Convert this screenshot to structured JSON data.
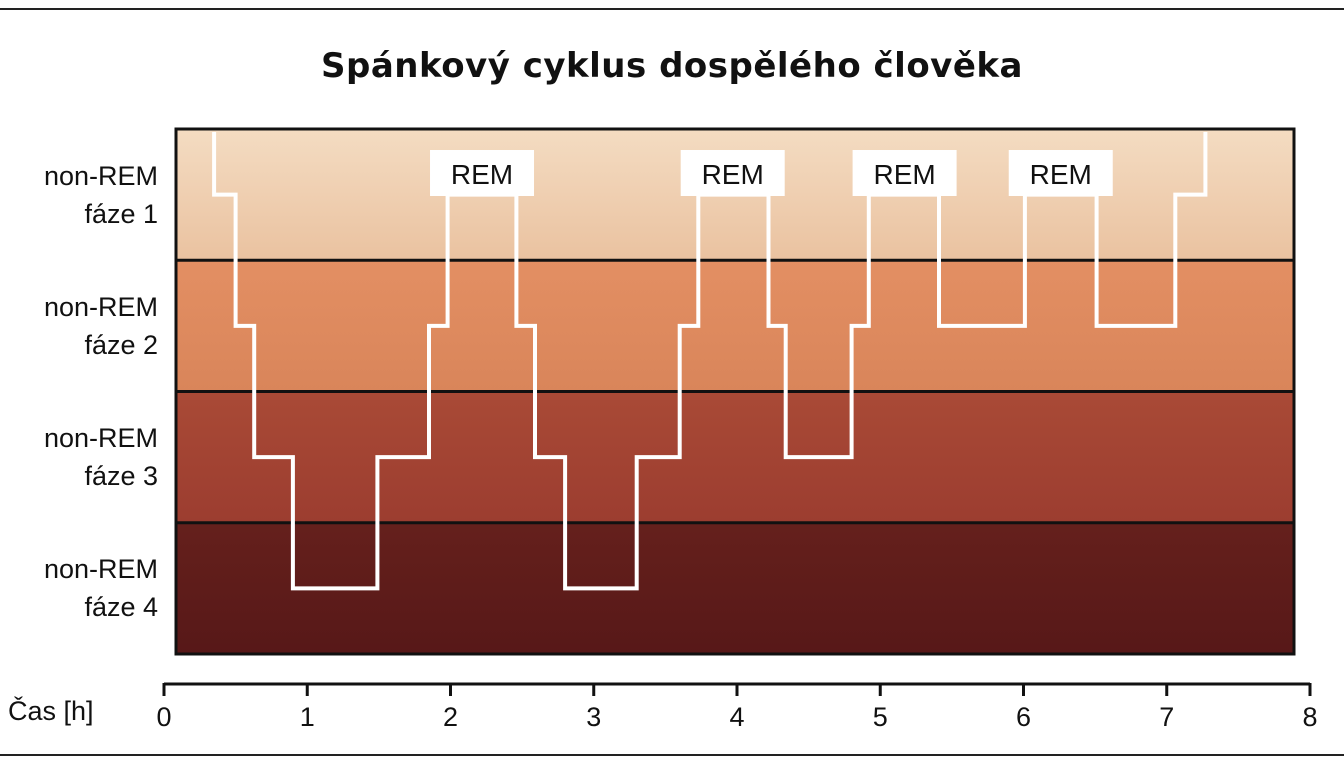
{
  "chart_data": {
    "type": "line",
    "title": "Spánkový cyklus dospělého člověka",
    "xlabel": "Čas [h]",
    "xlim": [
      0,
      8
    ],
    "x_ticks": [
      "0",
      "1",
      "2",
      "3",
      "4",
      "5",
      "6",
      "7",
      "8"
    ],
    "stages": [
      {
        "line1": "non-REM",
        "line2": "fáze 1",
        "color": "#efcfb0"
      },
      {
        "line1": "non-REM",
        "line2": "fáze 2",
        "color": "#df8b5f"
      },
      {
        "line1": "non-REM",
        "line2": "fáze 3",
        "color": "#a74634"
      },
      {
        "line1": "non-REM",
        "line2": "fáze 4",
        "color": "#5f1b1a"
      }
    ],
    "rem_label": "REM",
    "rem_periods": [
      {
        "x": [
          1.98,
          2.46
        ],
        "label_center": 2.22
      },
      {
        "x": [
          3.73,
          4.22
        ],
        "label_center": 3.97
      },
      {
        "x": [
          4.92,
          5.41
        ],
        "label_center": 5.17
      },
      {
        "x": [
          6.01,
          6.51
        ],
        "label_center": 6.26
      }
    ],
    "hypnogram": [
      [
        0.35,
        1
      ],
      [
        0.35,
        1.5
      ],
      [
        0.5,
        1.5
      ],
      [
        0.5,
        2.5
      ],
      [
        0.63,
        2.5
      ],
      [
        0.63,
        3.5
      ],
      [
        0.9,
        3.5
      ],
      [
        0.9,
        4.5
      ],
      [
        1.49,
        4.5
      ],
      [
        1.49,
        3.5
      ],
      [
        1.85,
        3.5
      ],
      [
        1.85,
        2.5
      ],
      [
        1.98,
        2.5
      ],
      [
        1.98,
        1.5
      ],
      [
        2.46,
        1.5
      ],
      [
        2.46,
        2.5
      ],
      [
        2.59,
        2.5
      ],
      [
        2.59,
        3.5
      ],
      [
        2.8,
        3.5
      ],
      [
        2.8,
        4.5
      ],
      [
        3.3,
        4.5
      ],
      [
        3.3,
        3.5
      ],
      [
        3.6,
        3.5
      ],
      [
        3.6,
        2.5
      ],
      [
        3.73,
        2.5
      ],
      [
        3.73,
        1.5
      ],
      [
        4.22,
        1.5
      ],
      [
        4.22,
        2.5
      ],
      [
        4.34,
        2.5
      ],
      [
        4.34,
        3.5
      ],
      [
        4.8,
        3.5
      ],
      [
        4.8,
        2.5
      ],
      [
        4.92,
        2.5
      ],
      [
        4.92,
        1.5
      ],
      [
        5.41,
        1.5
      ],
      [
        5.41,
        2.5
      ],
      [
        6.01,
        2.5
      ],
      [
        6.01,
        1.5
      ],
      [
        6.51,
        1.5
      ],
      [
        6.51,
        2.5
      ],
      [
        7.06,
        2.5
      ],
      [
        7.06,
        1.5
      ],
      [
        7.27,
        1.5
      ],
      [
        7.27,
        1
      ]
    ],
    "line_color": "#ffffff"
  }
}
